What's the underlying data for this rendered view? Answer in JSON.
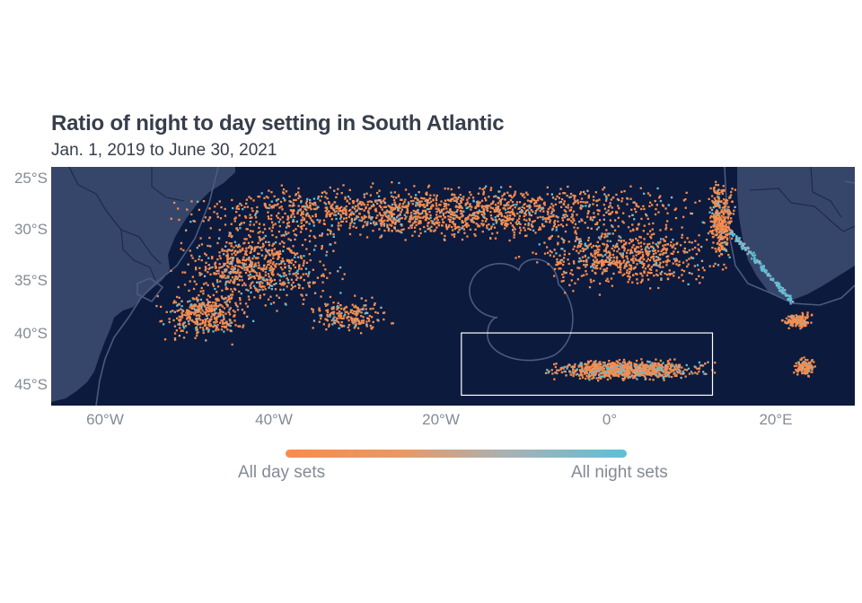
{
  "title": "Ratio of night to day setting in South Atlantic",
  "subtitle": "Jan. 1, 2019 to June 30, 2021",
  "axes": {
    "y_ticks": [
      "25°S",
      "30°S",
      "35°S",
      "40°S",
      "45°S"
    ],
    "x_ticks": [
      "60°W",
      "40°W",
      "20°W",
      "0°",
      "20°E"
    ]
  },
  "legend": {
    "low_label": "All day sets",
    "high_label": "All night sets",
    "low_color": "#f78c4d",
    "high_color": "#5ebfd6"
  },
  "colors": {
    "ocean": "#0c1a3d",
    "land": "#36466a",
    "boundary": "#4a5a80",
    "highlight_box": "#ffffff"
  },
  "map": {
    "extent_lon": [
      -67,
      29
    ],
    "extent_lat": [
      -47,
      -24
    ],
    "highlight_region": {
      "lon": [
        -18,
        12
      ],
      "lat": [
        -46,
        -40
      ]
    }
  }
}
